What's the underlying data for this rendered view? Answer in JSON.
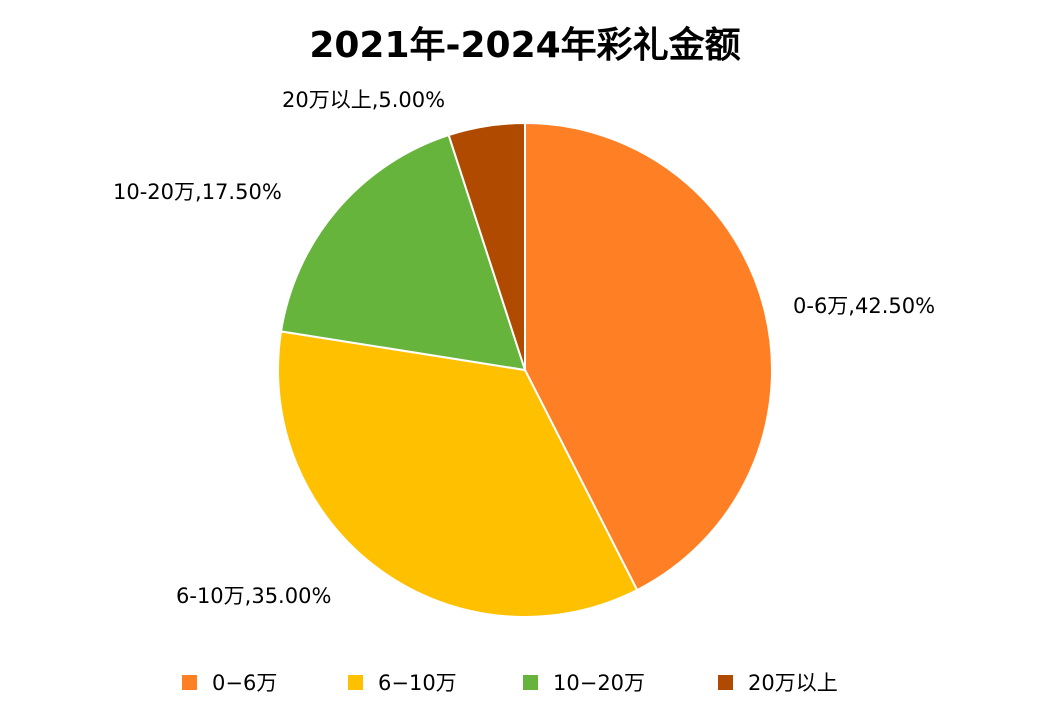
{
  "chart_data": {
    "type": "pie",
    "title": "2021年-2024年彩礼金额",
    "categories": [
      "0-6万",
      "6-10万",
      "10-20万",
      "20万以上"
    ],
    "values": [
      42.5,
      35.0,
      17.5,
      5.0
    ],
    "data_labels": [
      "0-6万,42.50%",
      "6-10万,35.00%",
      "10-20万,17.50%",
      "20万以上,5.00%"
    ],
    "legend_labels": [
      "0−6万",
      "6−10万",
      "10−20万",
      "20万以上"
    ],
    "colors": [
      "#FF7F24",
      "#FFC000",
      "#66B43C",
      "#B04A00"
    ],
    "legend_position": "bottom",
    "start_angle_deg": 0,
    "direction": "clockwise"
  }
}
